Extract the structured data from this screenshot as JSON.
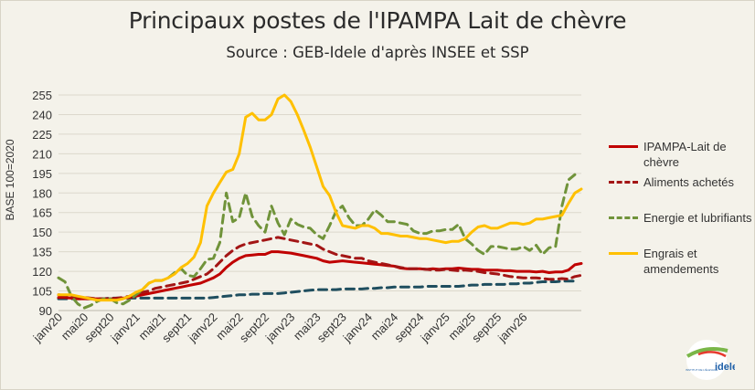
{
  "title": "Principaux postes de l'IPAMPA Lait de chèvre",
  "subtitle": "Source : GEB-Idele d'après INSEE et SSP",
  "logo": {
    "text": "idele",
    "small_text": "INSTITUT DE L'ÉLEVAGE"
  },
  "colors": {
    "ipampa": "#c00000",
    "aliments": "#a31515",
    "energie": "#70933a",
    "engrais": "#ffc000",
    "energie_line": "#6e8f35",
    "aliments_line": "#1f4e5f"
  },
  "chart_data": {
    "type": "line",
    "title": "Principaux postes de l'IPAMPA Lait de chèvre",
    "subtitle": "Source : GEB-Idele d'après INSEE et SSP",
    "ylabel": "BASE 100=2020",
    "xlabel": "",
    "ylim": [
      90,
      255
    ],
    "yticks": [
      90,
      105,
      120,
      135,
      150,
      165,
      180,
      195,
      210,
      225,
      240,
      255
    ],
    "xticks": [
      "janv20",
      "mai20",
      "sept20",
      "janv21",
      "mai21",
      "sept21",
      "janv22",
      "mai22",
      "sept22",
      "janv23",
      "mai23",
      "sept23",
      "janv24",
      "mai24",
      "sept24",
      "janv25",
      "mai25",
      "sept25",
      "janv26"
    ],
    "x_start": "2020-01",
    "x_end": "2026-03",
    "grid": "horizontal",
    "legend_position": "right",
    "series": [
      {
        "name": "IPAMPA-Lait de chèvre",
        "style": "solid",
        "color": "#c00000",
        "values": [
          100,
          100,
          99.5,
          99,
          99,
          99,
          99,
          99,
          99,
          99,
          99.5,
          100,
          101,
          102,
          103,
          104,
          105,
          106,
          107,
          108,
          109,
          110,
          111,
          113,
          115,
          118,
          123,
          127,
          130,
          132,
          132.5,
          133,
          133,
          135,
          135,
          134.5,
          134,
          133,
          132,
          131,
          130,
          128,
          127,
          127.5,
          128,
          127.5,
          127,
          126.5,
          126,
          125.5,
          125,
          124.5,
          124,
          122.5,
          122,
          122,
          122,
          121.5,
          122,
          121.5,
          122,
          122,
          122.5,
          122,
          121.5,
          121.5,
          121,
          121,
          121,
          120.5,
          120.5,
          120,
          120,
          120,
          119.5,
          120,
          119,
          119.5,
          119.5,
          121,
          125,
          126
        ]
      },
      {
        "name": "Aliments achetés",
        "style": "dashed",
        "color": "#a31515",
        "values": [
          102,
          101.5,
          101,
          100.5,
          100,
          99.5,
          99,
          99,
          99,
          99.5,
          100,
          101,
          103,
          104,
          105,
          107,
          108,
          109,
          110,
          111,
          112,
          114,
          116,
          118,
          122,
          127,
          132,
          136,
          139,
          141,
          142,
          143,
          144,
          145,
          146,
          145,
          144,
          143,
          142,
          141,
          140,
          137,
          135,
          133,
          132,
          131,
          130,
          130,
          128,
          127,
          126,
          125,
          124,
          123,
          122,
          122,
          122,
          121.5,
          121,
          121,
          121.5,
          121,
          120.5,
          121,
          120.5,
          120,
          119,
          118.5,
          118,
          117,
          116,
          115.5,
          115,
          115,
          115,
          114.5,
          114,
          114,
          114.5,
          114,
          116,
          117
        ]
      },
      {
        "name": "Energie et lubrifiants",
        "style": "dashed",
        "color": "#70933a",
        "values": [
          115,
          112,
          101,
          95,
          92,
          94,
          97,
          99,
          99,
          96,
          95,
          98,
          102,
          106,
          111,
          113,
          113,
          115,
          119,
          122,
          117,
          116,
          122,
          129,
          130,
          142,
          180,
          158,
          161,
          180,
          162,
          155,
          150,
          170,
          157,
          148,
          160,
          156,
          154,
          153,
          148,
          145,
          155,
          166,
          170,
          161,
          155,
          155,
          160,
          167,
          163,
          158,
          158,
          157,
          156,
          151,
          149,
          149,
          151,
          151,
          152,
          152,
          156,
          145,
          141,
          136,
          133,
          139,
          139,
          138,
          137,
          137,
          139,
          136,
          140,
          133,
          138,
          139,
          170,
          190,
          194
        ]
      },
      {
        "name": "Engrais et amendements",
        "style": "solid",
        "color": "#ffc000",
        "values": [
          102,
          102,
          102,
          101,
          100,
          99,
          98,
          98,
          98,
          98,
          99,
          101,
          104,
          106,
          111,
          113,
          113,
          115,
          118,
          123,
          126,
          131,
          142,
          170,
          180,
          188,
          196,
          198,
          210,
          238,
          241,
          236,
          236,
          240,
          252,
          255,
          250,
          240,
          228,
          215,
          200,
          185,
          178,
          165,
          155,
          154,
          153,
          155,
          155,
          153,
          149,
          149,
          148,
          147,
          147,
          146,
          145,
          145,
          144,
          143,
          142,
          143,
          143,
          145,
          150,
          154,
          155,
          153,
          153,
          155,
          157,
          157,
          156,
          157,
          160,
          160,
          161,
          162,
          163,
          172,
          180,
          183
        ]
      },
      {
        "name": "",
        "style": "dashed",
        "color": "#1f4e5f",
        "values": [
          99,
          99,
          99,
          99,
          99,
          99,
          99,
          99,
          99.5,
          99.5,
          99.5,
          99.5,
          99.5,
          99.5,
          99.5,
          99.5,
          99.5,
          99.5,
          99.5,
          99.5,
          99.5,
          99.5,
          99.5,
          99.5,
          100,
          100.5,
          101,
          101.5,
          102,
          102,
          102.5,
          102.5,
          103,
          103,
          103,
          103.5,
          104,
          104.5,
          105,
          105.5,
          106,
          106,
          106,
          106,
          106.5,
          106.5,
          106.5,
          106.5,
          107,
          107,
          107.5,
          107.5,
          108,
          108,
          108,
          108,
          108,
          108.5,
          108.5,
          108.5,
          108.5,
          108.5,
          108.5,
          109,
          109.5,
          109.5,
          110,
          110,
          110,
          110,
          110.5,
          110.5,
          111,
          111,
          111.5,
          112,
          112,
          112,
          112.5,
          112.5,
          112.5
        ]
      }
    ]
  }
}
